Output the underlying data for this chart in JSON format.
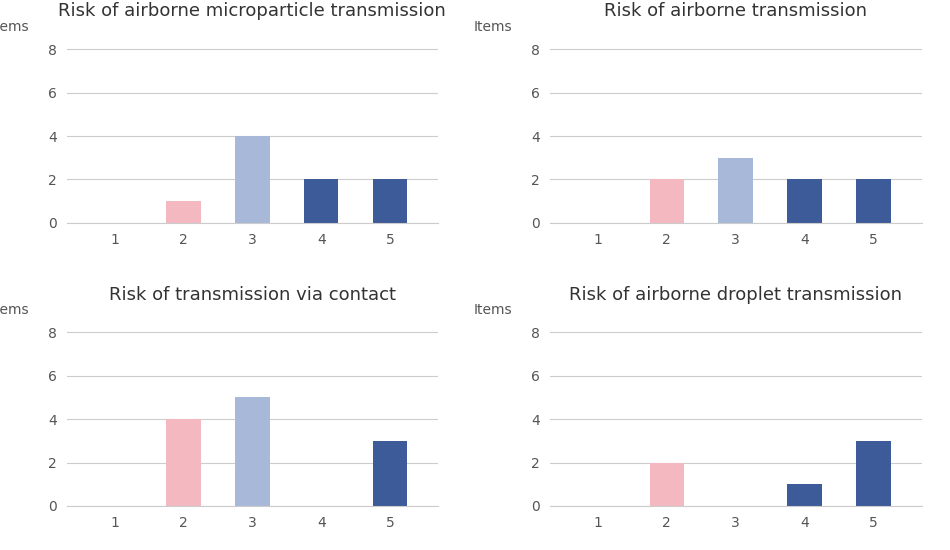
{
  "charts": [
    {
      "title": "Risk of airborne microparticle transmission",
      "ylabel": "Items",
      "x": [
        1,
        2,
        3,
        4,
        5
      ],
      "values": [
        0,
        1,
        4,
        2,
        2
      ],
      "colors": [
        "none",
        "#f4b8c1",
        "#a8b8d8",
        "#3d5a99",
        "#3d5a99"
      ]
    },
    {
      "title": "Risk of airborne transmission",
      "ylabel": "Items",
      "x": [
        1,
        2,
        3,
        4,
        5
      ],
      "values": [
        0,
        2,
        3,
        2,
        2
      ],
      "colors": [
        "none",
        "#f4b8c1",
        "#a8b8d8",
        "#3d5a99",
        "#3d5a99"
      ]
    },
    {
      "title": "Risk of transmission via contact",
      "ylabel": "Items",
      "x": [
        1,
        2,
        3,
        4,
        5
      ],
      "values": [
        0,
        4,
        5,
        0,
        3
      ],
      "colors": [
        "none",
        "#f4b8c1",
        "#a8b8d8",
        "none",
        "#3d5a99"
      ]
    },
    {
      "title": "Risk of airborne droplet transmission",
      "ylabel": "Items",
      "x": [
        1,
        2,
        3,
        4,
        5
      ],
      "values": [
        0,
        2,
        0,
        1,
        3
      ],
      "colors": [
        "none",
        "#f4b8c1",
        "none",
        "#3d5a99",
        "#3d5a99"
      ]
    }
  ],
  "ylim": [
    0,
    9
  ],
  "yticks": [
    0,
    2,
    4,
    6,
    8
  ],
  "xticks": [
    1,
    2,
    3,
    4,
    5
  ],
  "bar_width": 0.5,
  "background_color": "#ffffff",
  "grid_color": "#cccccc",
  "title_fontsize": 13,
  "ylabel_fontsize": 10,
  "tick_fontsize": 10
}
